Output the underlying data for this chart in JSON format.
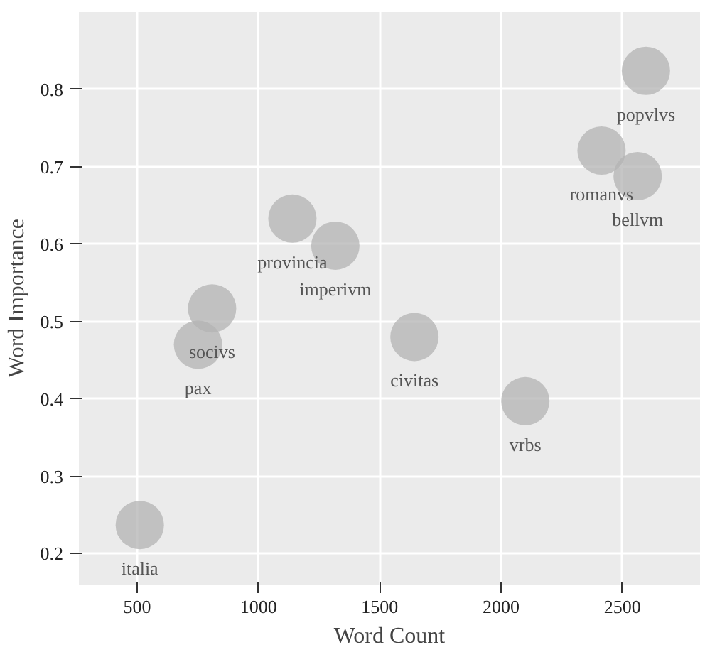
{
  "chart_data": {
    "type": "scatter",
    "xlabel": "Word Count",
    "ylabel": "Word Importance",
    "x": [
      511,
      751,
      809,
      1140,
      1317,
      1643,
      2100,
      2414,
      2563,
      2597
    ],
    "values": [
      0.237,
      0.47,
      0.517,
      0.633,
      0.598,
      0.48,
      0.397,
      0.721,
      0.688,
      0.824
    ],
    "color": "#b3b3b3",
    "marker": "circle",
    "annotations": [
      {
        "text": "italia",
        "x": 511,
        "y": 0.237
      },
      {
        "text": "pax",
        "x": 751,
        "y": 0.47
      },
      {
        "text": "socivs",
        "x": 809,
        "y": 0.517
      },
      {
        "text": "provincia",
        "x": 1140,
        "y": 0.633
      },
      {
        "text": "imperivm",
        "x": 1317,
        "y": 0.598
      },
      {
        "text": "civitas",
        "x": 1643,
        "y": 0.48
      },
      {
        "text": "vrbs",
        "x": 2100,
        "y": 0.397
      },
      {
        "text": "romanvs",
        "x": 2414,
        "y": 0.721
      },
      {
        "text": "bellvm",
        "x": 2563,
        "y": 0.688
      },
      {
        "text": "popvlvs",
        "x": 2597,
        "y": 0.824
      }
    ],
    "xlim": [
      260,
      2820
    ],
    "ylim": [
      0.16,
      0.9
    ],
    "xticks": [
      500,
      1000,
      1500,
      2000,
      2500
    ],
    "yticks": [
      0.2,
      0.3,
      0.4,
      0.5,
      0.6,
      0.7,
      0.8
    ],
    "grid": true
  }
}
